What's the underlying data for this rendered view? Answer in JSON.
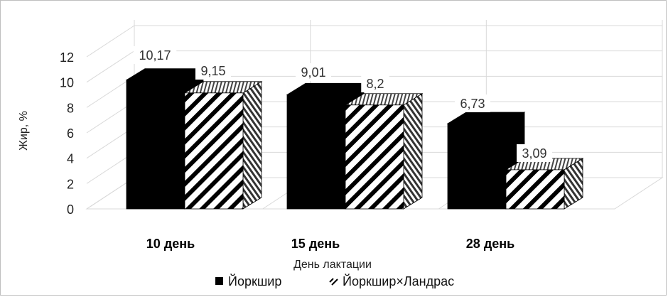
{
  "chart_data": {
    "type": "bar",
    "categories": [
      "10 день",
      "15 день",
      "28 день"
    ],
    "series": [
      {
        "name": "Йоркшир",
        "values": [
          10.17,
          9.01,
          6.73
        ],
        "value_labels": [
          "10,17",
          "9,01",
          "6,73"
        ],
        "fill": "solid-black"
      },
      {
        "name": "Йоркшир×Ландрас",
        "values": [
          9.15,
          8.2,
          3.09
        ],
        "value_labels": [
          "9,15",
          "8,2",
          "3,09"
        ],
        "fill": "diagonal-hatch"
      }
    ],
    "ylabel": "Жир, %",
    "xlabel": "День лактации",
    "ylim": [
      0,
      12
    ],
    "yticks": [
      "0",
      "2",
      "4",
      "6",
      "8",
      "10",
      "12"
    ],
    "grid": true,
    "style": "3d-clustered-column",
    "legend_position": "bottom",
    "colors": {
      "series1": "#000000",
      "series2_stripe": "#000000",
      "background": "#ffffff",
      "grid": "#d9d9d9"
    }
  }
}
